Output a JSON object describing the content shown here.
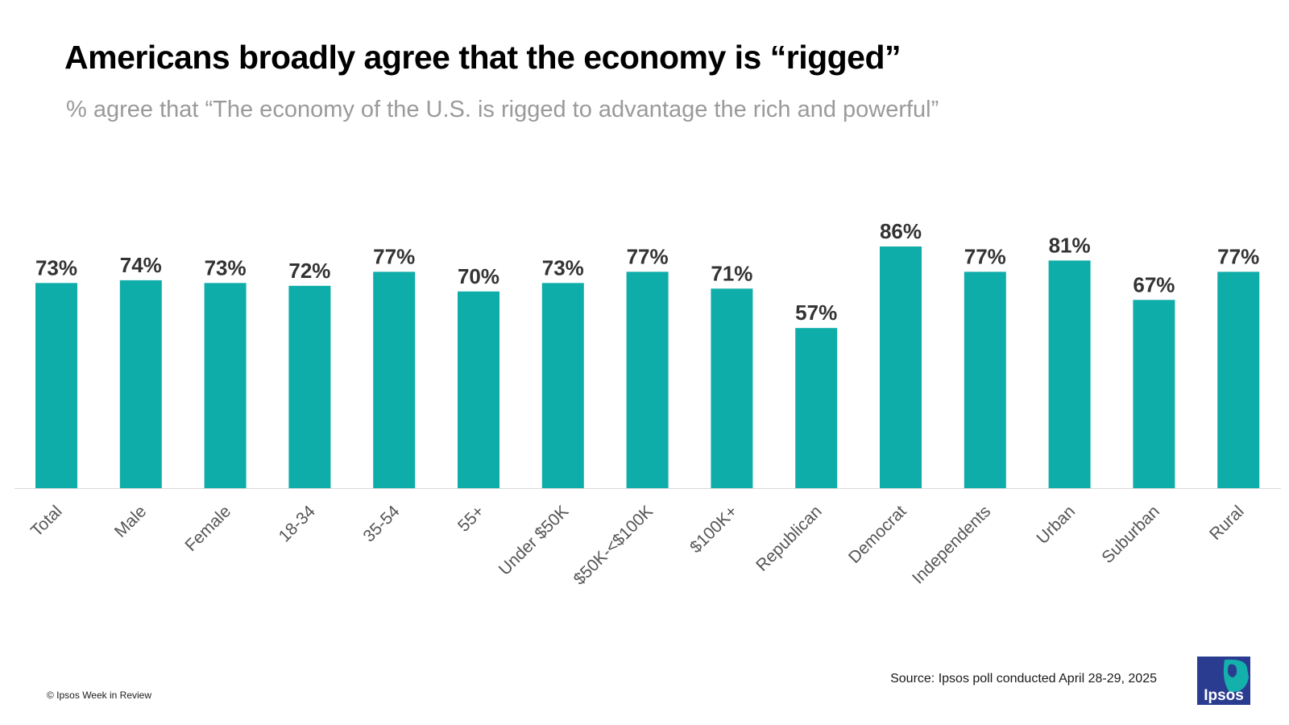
{
  "title": "Americans broadly agree that the economy is “rigged”",
  "subtitle": "% agree that “The economy of the U.S. is rigged to advantage the rich and powerful”",
  "source": "Source: Ipsos poll conducted April 28-29, 2025",
  "copyright": "© Ipsos Week in Review",
  "logo": {
    "text": "Ipsos",
    "icon": "ipsos-logo-icon"
  },
  "colors": {
    "bar": "#0fada9",
    "value_label": "#333333",
    "category_label": "#555555",
    "axis": "#d9d9d9",
    "logo_blue": "#2a3c8f",
    "logo_teal": "#14b0ac"
  },
  "chart_data": {
    "type": "bar",
    "categories": [
      "Total",
      "Male",
      "Female",
      "18-34",
      "35-54",
      "55+",
      "Under $50K",
      "$50K-<$100K",
      "$100K+",
      "Republican",
      "Democrat",
      "Independents",
      "Urban",
      "Suburban",
      "Rural"
    ],
    "values": [
      73,
      74,
      73,
      72,
      77,
      70,
      73,
      77,
      71,
      57,
      86,
      77,
      81,
      67,
      77
    ],
    "value_labels": [
      "73%",
      "74%",
      "73%",
      "72%",
      "77%",
      "70%",
      "73%",
      "77%",
      "71%",
      "57%",
      "86%",
      "77%",
      "81%",
      "67%",
      "77%"
    ],
    "title": "Americans broadly agree that the economy is “rigged”",
    "subtitle": "% agree that “The economy of the U.S. is rigged to advantage the rich and powerful”",
    "ylim": [
      0,
      86
    ],
    "grid": false,
    "legend": "none"
  }
}
